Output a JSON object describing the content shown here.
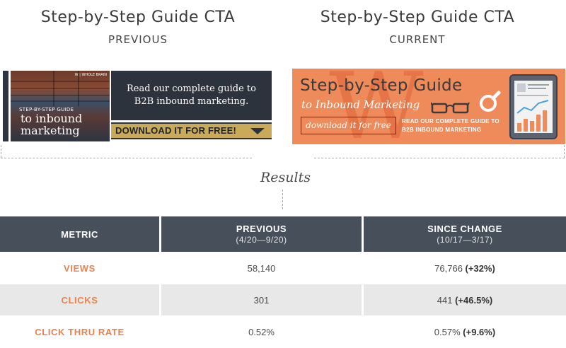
{
  "header": {
    "previous": {
      "title": "Step-by-Step Guide CTA",
      "label": "PREVIOUS"
    },
    "current": {
      "title": "Step-by-Step Guide CTA",
      "label": "CURRENT"
    }
  },
  "previous_cta": {
    "logo_text": "W | WHOLE BRAIN",
    "photo_small": "STEP-BY-STEP GUIDE",
    "photo_big_line1": "to inbound",
    "photo_big_line2": "marketing",
    "message_line1": "Read our complete guide to",
    "message_line2": "B2B inbound marketing.",
    "button": "DOWNLOAD IT FOR FREE!"
  },
  "current_cta": {
    "watermark": "W",
    "title": "Step-by-Step Guide",
    "subtitle": "to Inbound Marketing",
    "button": "download it for free",
    "read_line1": "READ OUR COMPLETE GUIDE TO",
    "read_line2": "B2B INBOUND MARKETING"
  },
  "results_label": "Results",
  "table": {
    "headers": {
      "metric": "METRIC",
      "previous": "PREVIOUS",
      "previous_range": "(4/20—9/20)",
      "since": "SINCE CHANGE",
      "since_range": "(10/17—3/17)"
    },
    "rows": [
      {
        "metric": "VIEWS",
        "previous": "58,140",
        "since": "76,766",
        "change": "(+32%)"
      },
      {
        "metric": "CLICKS",
        "previous": "301",
        "since": "441",
        "change": "(+46.5%)"
      },
      {
        "metric": "CLICK THRU RATE",
        "previous": "0.52%",
        "since": "0.57%",
        "change": "(+9.6%)"
      }
    ]
  },
  "colors": {
    "accent_orange": "#ef8a5b",
    "header_dark": "#474f5b",
    "gold": "#c9a95a"
  }
}
